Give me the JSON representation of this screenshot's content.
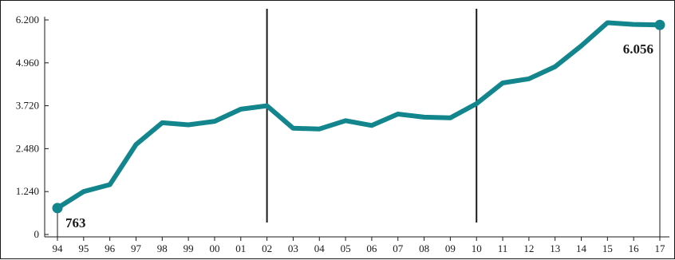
{
  "chart_data": {
    "type": "line",
    "title": "",
    "xlabel": "",
    "ylabel": "",
    "categories": [
      "94",
      "95",
      "96",
      "97",
      "98",
      "99",
      "00",
      "01",
      "02",
      "03",
      "04",
      "05",
      "06",
      "07",
      "08",
      "09",
      "10",
      "11",
      "12",
      "13",
      "14",
      "15",
      "16",
      "17"
    ],
    "y_ticks": [
      "0",
      "1.240",
      "2.480",
      "3.720",
      "4.960",
      "6.200"
    ],
    "ylim": [
      0,
      6200
    ],
    "series": [
      {
        "values": [
          763,
          1240,
          1440,
          2600,
          3230,
          3170,
          3270,
          3620,
          3720,
          3070,
          3050,
          3290,
          3150,
          3480,
          3390,
          3370,
          3780,
          4380,
          4500,
          4850,
          5450,
          6120,
          6070,
          6056
        ]
      }
    ],
    "data_labels": [
      {
        "index": 0,
        "text": "763"
      },
      {
        "index": 23,
        "text": "6.056"
      }
    ],
    "vertical_markers_at": [
      "02",
      "10"
    ],
    "grid": false,
    "line_color": "#13868d"
  }
}
